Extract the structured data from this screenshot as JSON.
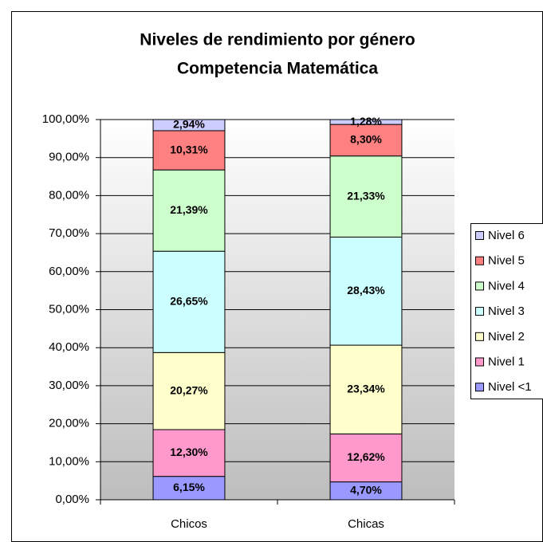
{
  "chart_data": {
    "type": "stacked_bar",
    "title": "Niveles de rendimiento por género",
    "subtitle": "Competencia Matemática",
    "categories": [
      "Chicos",
      "Chicas"
    ],
    "series": [
      {
        "name": "Nivel <1",
        "color": "#9999ff",
        "values": [
          6.15,
          4.7
        ],
        "value_labels": [
          "6,15%",
          "4,70%"
        ]
      },
      {
        "name": "Nivel 1",
        "color": "#ff99cc",
        "values": [
          12.3,
          12.62
        ],
        "value_labels": [
          "12,30%",
          "12,62%"
        ]
      },
      {
        "name": "Nivel 2",
        "color": "#ffffcc",
        "values": [
          20.27,
          23.34
        ],
        "value_labels": [
          "20,27%",
          "23,34%"
        ]
      },
      {
        "name": "Nivel 3",
        "color": "#ccffff",
        "values": [
          26.65,
          28.43
        ],
        "value_labels": [
          "26,65%",
          "28,43%"
        ]
      },
      {
        "name": "Nivel 4",
        "color": "#ccffcc",
        "values": [
          21.39,
          21.33
        ],
        "value_labels": [
          "21,39%",
          "21,33%"
        ]
      },
      {
        "name": "Nivel 5",
        "color": "#ff8080",
        "values": [
          10.31,
          8.3
        ],
        "value_labels": [
          "10,31%",
          "8,30%"
        ]
      },
      {
        "name": "Nivel 6",
        "color": "#ccccff",
        "values": [
          2.94,
          1.28
        ],
        "value_labels": [
          "2,94%",
          "1,28%"
        ]
      }
    ],
    "ylim": [
      0,
      100
    ],
    "yticks": [
      {
        "value": 0,
        "label": "0,00%"
      },
      {
        "value": 10,
        "label": "10,00%"
      },
      {
        "value": 20,
        "label": "20,00%"
      },
      {
        "value": 30,
        "label": "30,00%"
      },
      {
        "value": 40,
        "label": "40,00%"
      },
      {
        "value": 50,
        "label": "50,00%"
      },
      {
        "value": 60,
        "label": "60,00%"
      },
      {
        "value": 70,
        "label": "70,00%"
      },
      {
        "value": 80,
        "label": "80,00%"
      },
      {
        "value": 90,
        "label": "90,00%"
      },
      {
        "value": 100,
        "label": "100,00%"
      }
    ],
    "grid": true,
    "legend": "right"
  }
}
